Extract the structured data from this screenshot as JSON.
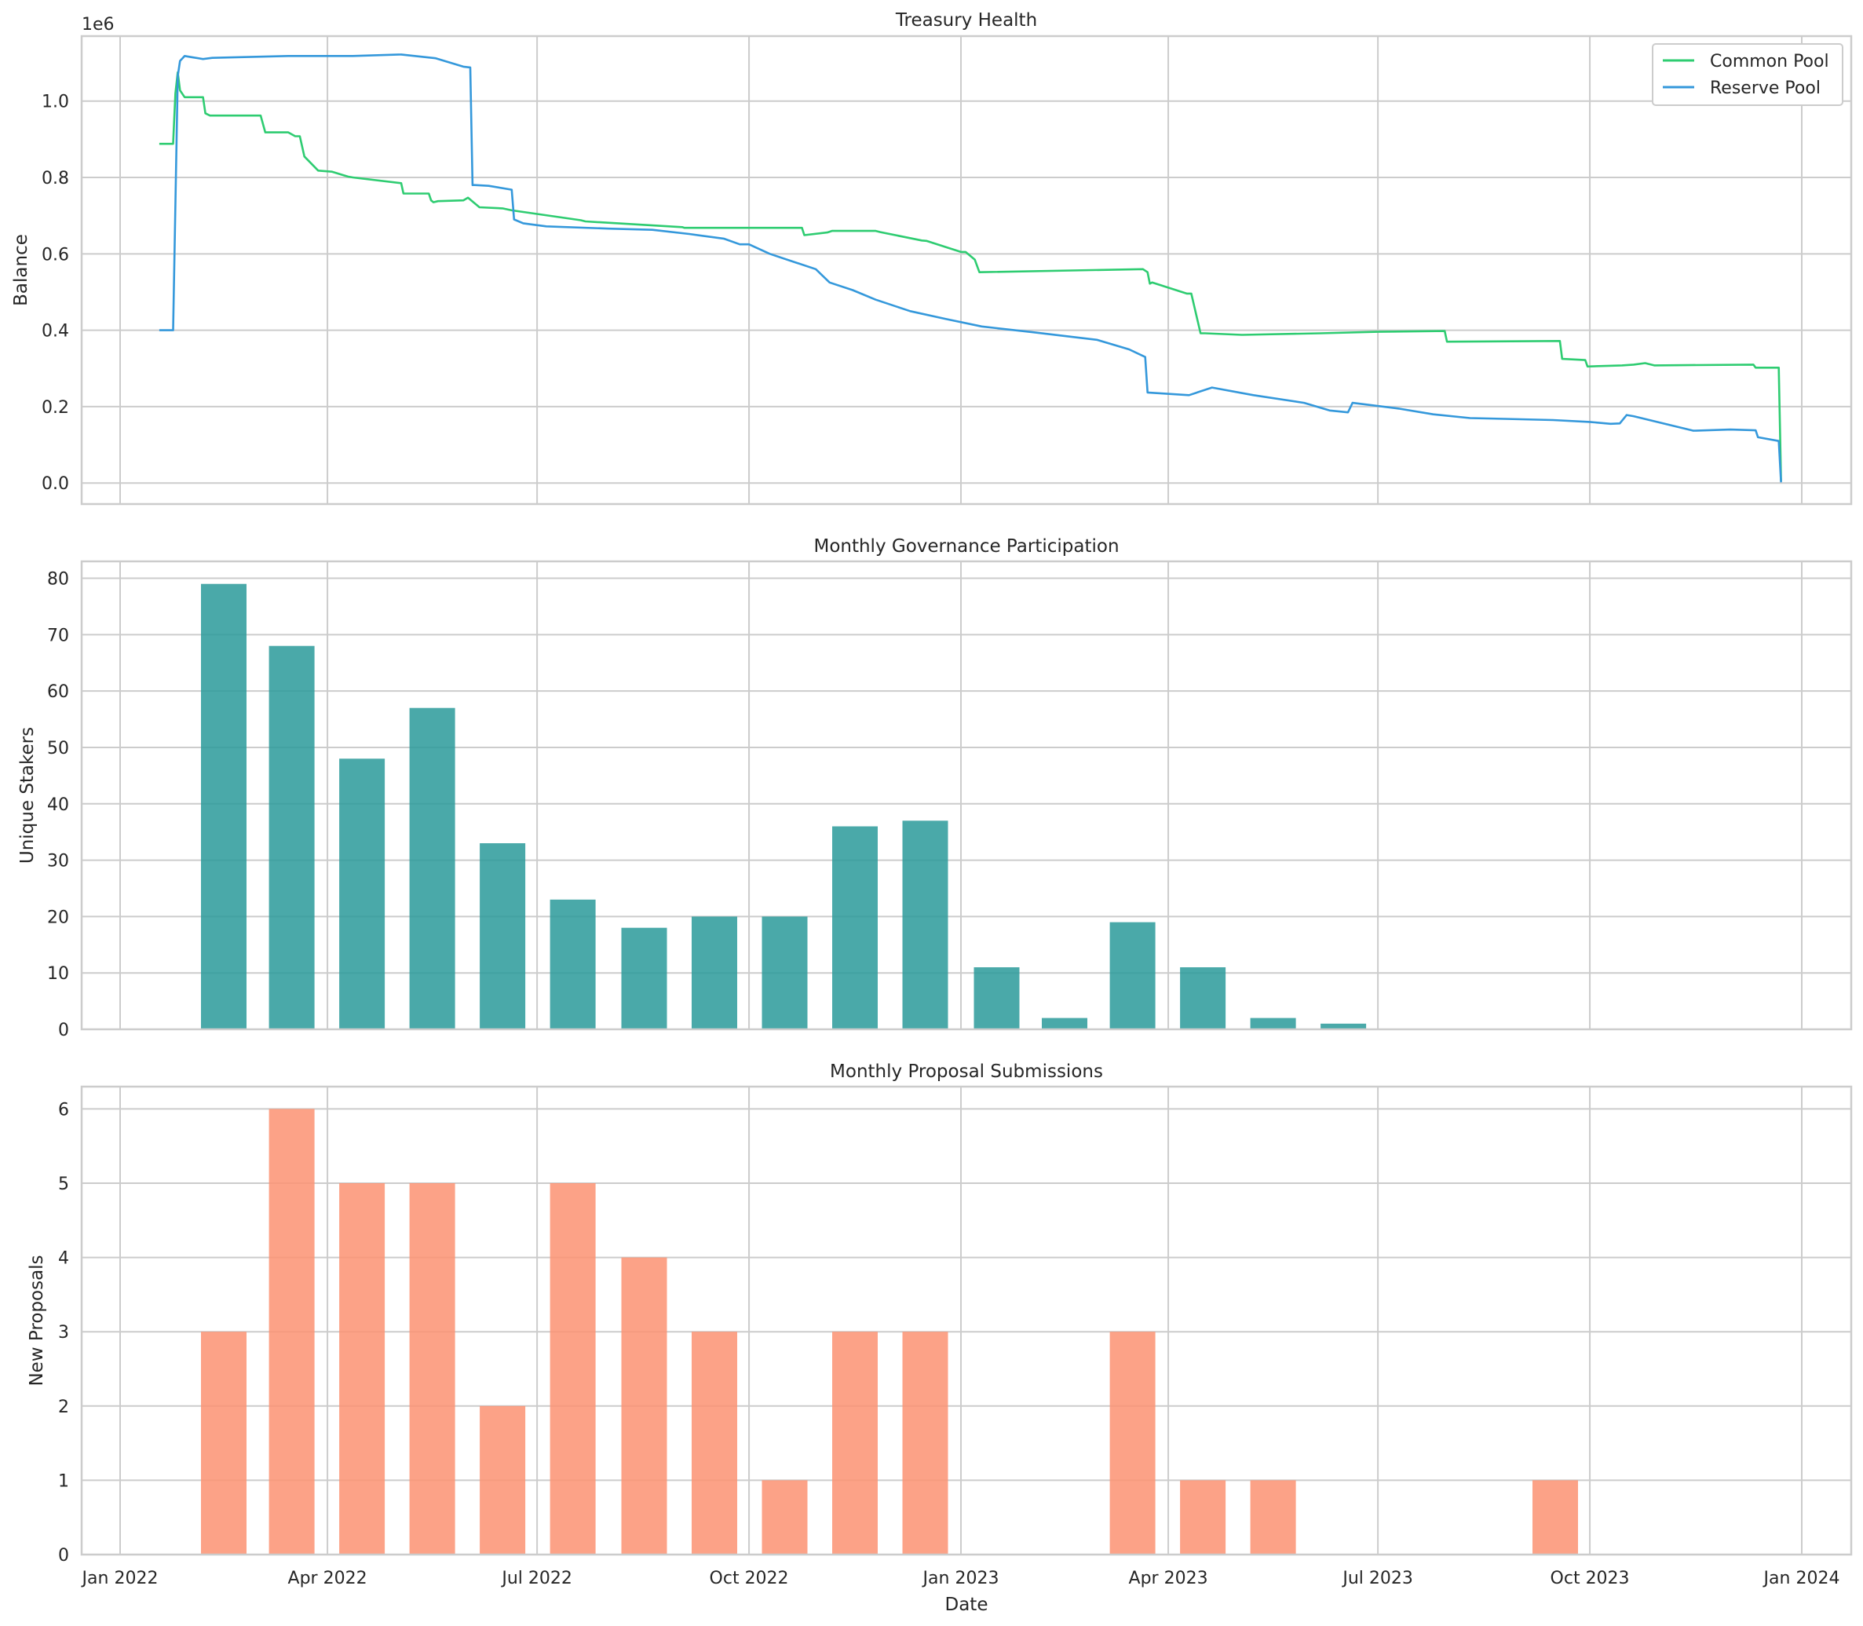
{
  "chart_data": [
    {
      "type": "line",
      "title": "Treasury Health",
      "xlabel": "",
      "ylabel": "Balance",
      "y_offset_label": "1e6",
      "ylim": [
        -55000,
        1170000
      ],
      "y_ticks": [
        "0.0",
        "0.2",
        "0.4",
        "0.6",
        "0.8",
        "1.0"
      ],
      "x_ticks": [
        "Jan 2022",
        "Apr 2022",
        "Jul 2022",
        "Oct 2022",
        "Jan 2023",
        "Apr 2023",
        "Jul 2023",
        "Oct 2023",
        "Jan 2024"
      ],
      "grid": true,
      "legend": "top-right",
      "series": [
        {
          "name": "Common Pool",
          "color": "#2ecc71",
          "x": [
            "2022-01-18",
            "2022-01-24",
            "2022-01-25",
            "2022-01-26",
            "2022-01-27",
            "2022-01-29",
            "2022-02-06",
            "2022-02-07",
            "2022-02-09",
            "2022-02-17",
            "2022-02-19",
            "2022-03-03",
            "2022-03-05",
            "2022-03-12",
            "2022-03-15",
            "2022-03-18",
            "2022-03-20",
            "2022-03-22",
            "2022-03-28",
            "2022-04-03",
            "2022-04-10",
            "2022-04-12",
            "2022-05-03",
            "2022-05-04",
            "2022-05-15",
            "2022-05-16",
            "2022-05-17",
            "2022-05-19",
            "2022-05-30",
            "2022-06-01",
            "2022-06-06",
            "2022-06-16",
            "2022-06-20",
            "2022-07-20",
            "2022-07-22",
            "2022-09-02",
            "2022-09-03",
            "2022-10-24",
            "2022-10-25",
            "2022-11-04",
            "2022-11-06",
            "2022-11-25",
            "2022-11-27",
            "2022-12-15",
            "2022-12-17",
            "2023-01-01",
            "2023-01-03",
            "2023-01-07",
            "2023-01-09",
            "2023-03-21",
            "2023-03-23",
            "2023-03-24",
            "2023-03-25",
            "2023-04-09",
            "2023-04-11",
            "2023-04-15",
            "2023-04-17",
            "2023-05-03",
            "2023-06-06",
            "2023-07-01",
            "2023-07-30",
            "2023-07-31",
            "2023-09-18",
            "2023-09-19",
            "2023-09-29",
            "2023-09-30",
            "2023-10-15",
            "2023-10-20",
            "2023-10-25",
            "2023-10-29",
            "2023-12-11",
            "2023-12-12",
            "2023-12-22",
            "2023-12-23"
          ],
          "values": [
            888000,
            888000,
            1020000,
            1075000,
            1028000,
            1010000,
            1010000,
            968000,
            962000,
            962000,
            962000,
            962000,
            918000,
            918000,
            918000,
            908000,
            908000,
            855000,
            818000,
            815000,
            802000,
            800000,
            785000,
            758000,
            758000,
            740000,
            735000,
            738000,
            740000,
            747000,
            722000,
            719000,
            714000,
            688000,
            685000,
            670000,
            668000,
            668000,
            649000,
            656000,
            660000,
            660000,
            657000,
            635000,
            634000,
            605000,
            605000,
            585000,
            552000,
            560000,
            552000,
            522000,
            525000,
            496000,
            496000,
            392000,
            392000,
            388000,
            392000,
            396000,
            398000,
            370000,
            372000,
            325000,
            322000,
            305000,
            308000,
            310000,
            314000,
            308000,
            310000,
            302000,
            302000,
            5000
          ]
        },
        {
          "name": "Reserve Pool",
          "color": "#3498db",
          "x": [
            "2022-01-18",
            "2022-01-24",
            "2022-01-26",
            "2022-01-27",
            "2022-01-29",
            "2022-02-01",
            "2022-02-06",
            "2022-02-10",
            "2022-03-15",
            "2022-04-12",
            "2022-05-03",
            "2022-05-18",
            "2022-05-30",
            "2022-06-02",
            "2022-06-03",
            "2022-06-04",
            "2022-06-10",
            "2022-06-20",
            "2022-06-21",
            "2022-06-25",
            "2022-07-05",
            "2022-08-01",
            "2022-08-20",
            "2022-09-05",
            "2022-09-20",
            "2022-09-27",
            "2022-10-01",
            "2022-10-10",
            "2022-10-20",
            "2022-10-30",
            "2022-11-05",
            "2022-11-15",
            "2022-11-25",
            "2022-12-10",
            "2022-12-25",
            "2023-01-10",
            "2023-02-01",
            "2023-03-01",
            "2023-03-15",
            "2023-03-22",
            "2023-03-23",
            "2023-04-10",
            "2023-04-20",
            "2023-05-08",
            "2023-05-30",
            "2023-06-10",
            "2023-06-18",
            "2023-06-20",
            "2023-07-10",
            "2023-07-25",
            "2023-08-10",
            "2023-08-25",
            "2023-09-15",
            "2023-10-01",
            "2023-10-10",
            "2023-10-14",
            "2023-10-17",
            "2023-10-20",
            "2023-11-15",
            "2023-12-01",
            "2023-12-12",
            "2023-12-13",
            "2023-12-22",
            "2023-12-23"
          ],
          "values": [
            400000,
            400000,
            1065000,
            1105000,
            1118000,
            1115000,
            1110000,
            1113000,
            1118000,
            1118000,
            1122000,
            1112000,
            1090000,
            1088000,
            780000,
            780000,
            778000,
            768000,
            690000,
            680000,
            672000,
            666000,
            663000,
            652000,
            640000,
            625000,
            625000,
            600000,
            580000,
            560000,
            525000,
            505000,
            480000,
            450000,
            430000,
            410000,
            395000,
            375000,
            350000,
            330000,
            237000,
            230000,
            250000,
            230000,
            210000,
            190000,
            185000,
            210000,
            195000,
            180000,
            170000,
            168000,
            165000,
            160000,
            155000,
            156000,
            178000,
            175000,
            137000,
            140000,
            138000,
            120000,
            110000,
            2000
          ]
        }
      ]
    },
    {
      "type": "bar",
      "title": "Monthly Governance Participation",
      "xlabel": "",
      "ylabel": "Unique Stakers",
      "color": "#2a9a9a",
      "ylim": [
        0,
        83
      ],
      "y_ticks": [
        "0",
        "10",
        "20",
        "30",
        "40",
        "50",
        "60",
        "70",
        "80"
      ],
      "x_ticks": [
        "Jan 2022",
        "Apr 2022",
        "Jul 2022",
        "Oct 2022",
        "Jan 2023",
        "Apr 2023",
        "Jul 2023",
        "Oct 2023",
        "Jan 2024"
      ],
      "grid": true,
      "x": [
        "2022-02",
        "2022-03",
        "2022-04",
        "2022-05",
        "2022-06",
        "2022-07",
        "2022-08",
        "2022-09",
        "2022-10",
        "2022-11",
        "2022-12",
        "2023-01",
        "2023-02",
        "2023-03",
        "2023-04",
        "2023-05",
        "2023-06"
      ],
      "values": [
        79,
        68,
        48,
        57,
        33,
        23,
        18,
        20,
        20,
        36,
        37,
        11,
        2,
        19,
        11,
        2,
        1
      ]
    },
    {
      "type": "bar",
      "title": "Monthly Proposal Submissions",
      "xlabel": "Date",
      "ylabel": "New Proposals",
      "color": "#fc9272",
      "ylim": [
        0,
        6.3
      ],
      "y_ticks": [
        "0",
        "1",
        "2",
        "3",
        "4",
        "5",
        "6"
      ],
      "x_ticks": [
        "Jan 2022",
        "Apr 2022",
        "Jul 2022",
        "Oct 2022",
        "Jan 2023",
        "Apr 2023",
        "Jul 2023",
        "Oct 2023",
        "Jan 2024"
      ],
      "grid": true,
      "x": [
        "2022-02",
        "2022-03",
        "2022-04",
        "2022-05",
        "2022-06",
        "2022-07",
        "2022-08",
        "2022-09",
        "2022-10",
        "2022-11",
        "2022-12",
        "2023-03",
        "2023-04",
        "2023-05",
        "2023-09"
      ],
      "values": [
        3,
        6,
        5,
        5,
        2,
        5,
        4,
        3,
        1,
        3,
        3,
        3,
        1,
        1,
        1
      ]
    }
  ]
}
